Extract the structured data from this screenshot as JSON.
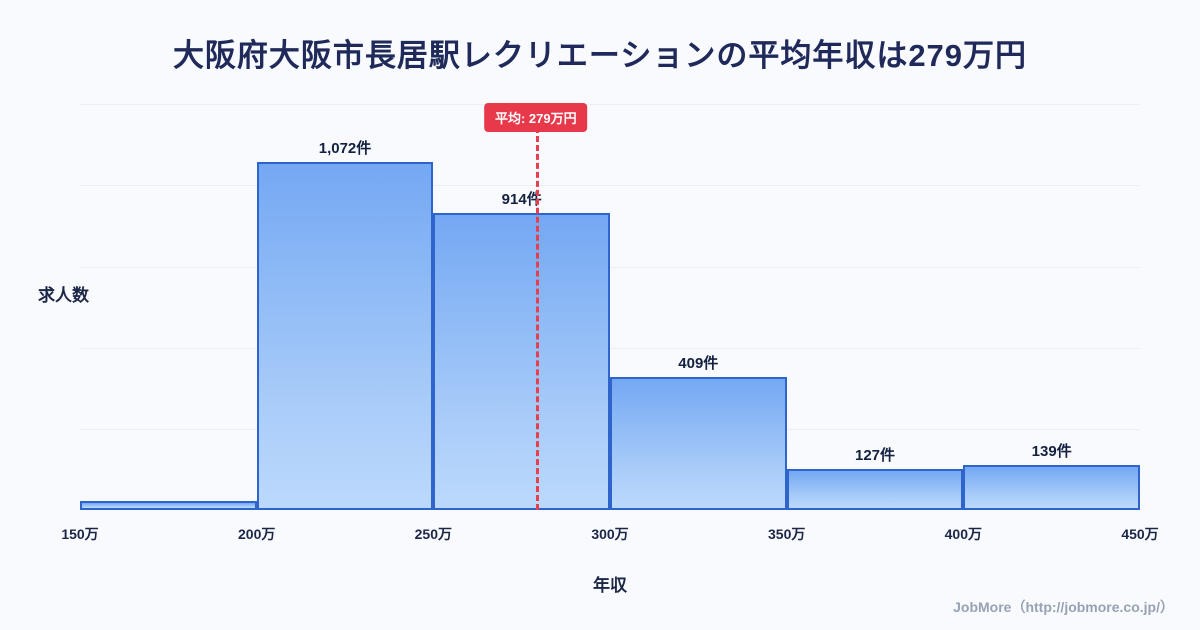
{
  "title": "大阪府大阪市長居駅レクリエーションの平均年収は279万円",
  "chart_data": {
    "type": "bar",
    "title": "大阪府大阪市長居駅レクリエーションの平均年収は279万円",
    "xlabel": "年収",
    "ylabel": "求人数",
    "x_range": [
      150,
      450
    ],
    "x_tick_labels": [
      "150万",
      "200万",
      "250万",
      "300万",
      "350万",
      "400万",
      "450万"
    ],
    "ylim": [
      0,
      1150
    ],
    "grid": "faint horizontal gridlines",
    "legend": "none",
    "bins": [
      {
        "range": "150万-200万",
        "value": 28,
        "label": ""
      },
      {
        "range": "200万-250万",
        "value": 1072,
        "label": "1,072件"
      },
      {
        "range": "250万-300万",
        "value": 914,
        "label": "914件"
      },
      {
        "range": "300万-350万",
        "value": 409,
        "label": "409件"
      },
      {
        "range": "350万-400万",
        "value": 127,
        "label": "127件"
      },
      {
        "range": "400万-450万",
        "value": 139,
        "label": "139件"
      }
    ],
    "average": {
      "value": 279,
      "label": "平均: 279万円"
    },
    "colors": {
      "bar_gradient_top": "#74a8f3",
      "bar_gradient_bottom": "#bcd9fc",
      "bar_border": "#3064cd",
      "average_line": "#e6404e",
      "badge_background": "#e8394b",
      "badge_text": "#ffffff",
      "title_text": "#1f2a5a",
      "background": "#f8fafd"
    }
  },
  "footer": {
    "credit": "JobMore（http://jobmore.co.jp/）"
  }
}
